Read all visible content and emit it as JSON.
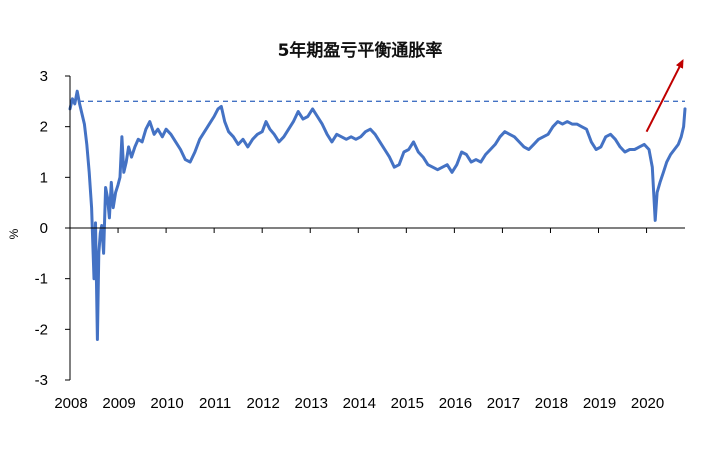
{
  "chart_data": {
    "type": "line",
    "title": "5年期盈亏平衡通胀率",
    "ylabel": "%",
    "xlabel": "",
    "ylim": [
      -3,
      3
    ],
    "xlim": [
      2008.0,
      2020.8
    ],
    "y_ticks": [
      "3",
      "2",
      "1",
      "0",
      "-1",
      "-2",
      "-3"
    ],
    "x_ticks": [
      "2008",
      "2009",
      "2010",
      "2011",
      "2012",
      "2013",
      "2014",
      "2015",
      "2016",
      "2017",
      "2018",
      "2019",
      "2020"
    ],
    "reference_line": {
      "y": 2.5,
      "style": "dashed",
      "color": "#4472c4"
    },
    "trend_arrow": {
      "from": [
        2020.0,
        1.9
      ],
      "to": [
        2020.75,
        3.3
      ],
      "color": "#c00000"
    },
    "colors": {
      "series": "#4472c4",
      "arrow": "#c00000",
      "axis": "#000000"
    },
    "series": [
      {
        "points": [
          [
            2008.0,
            2.35
          ],
          [
            2008.05,
            2.55
          ],
          [
            2008.1,
            2.45
          ],
          [
            2008.15,
            2.7
          ],
          [
            2008.2,
            2.45
          ],
          [
            2008.25,
            2.25
          ],
          [
            2008.3,
            2.05
          ],
          [
            2008.35,
            1.65
          ],
          [
            2008.4,
            1.1
          ],
          [
            2008.45,
            0.4
          ],
          [
            2008.5,
            -1.0
          ],
          [
            2008.53,
            0.1
          ],
          [
            2008.57,
            -2.2
          ],
          [
            2008.6,
            -0.5
          ],
          [
            2008.63,
            -0.1
          ],
          [
            2008.66,
            0.05
          ],
          [
            2008.7,
            -0.5
          ],
          [
            2008.74,
            0.8
          ],
          [
            2008.78,
            0.6
          ],
          [
            2008.82,
            0.2
          ],
          [
            2008.86,
            0.9
          ],
          [
            2008.9,
            0.4
          ],
          [
            2008.95,
            0.7
          ],
          [
            2009.0,
            0.85
          ],
          [
            2009.04,
            1.0
          ],
          [
            2009.08,
            1.8
          ],
          [
            2009.12,
            1.1
          ],
          [
            2009.17,
            1.3
          ],
          [
            2009.22,
            1.6
          ],
          [
            2009.28,
            1.4
          ],
          [
            2009.35,
            1.6
          ],
          [
            2009.42,
            1.75
          ],
          [
            2009.5,
            1.7
          ],
          [
            2009.58,
            1.95
          ],
          [
            2009.66,
            2.1
          ],
          [
            2009.75,
            1.85
          ],
          [
            2009.83,
            1.95
          ],
          [
            2009.92,
            1.8
          ],
          [
            2010.0,
            1.95
          ],
          [
            2010.1,
            1.85
          ],
          [
            2010.2,
            1.7
          ],
          [
            2010.3,
            1.55
          ],
          [
            2010.4,
            1.35
          ],
          [
            2010.5,
            1.3
          ],
          [
            2010.6,
            1.5
          ],
          [
            2010.7,
            1.75
          ],
          [
            2010.8,
            1.9
          ],
          [
            2010.9,
            2.05
          ],
          [
            2011.0,
            2.2
          ],
          [
            2011.08,
            2.35
          ],
          [
            2011.15,
            2.4
          ],
          [
            2011.22,
            2.1
          ],
          [
            2011.3,
            1.9
          ],
          [
            2011.4,
            1.8
          ],
          [
            2011.5,
            1.65
          ],
          [
            2011.6,
            1.75
          ],
          [
            2011.7,
            1.6
          ],
          [
            2011.8,
            1.75
          ],
          [
            2011.9,
            1.85
          ],
          [
            2012.0,
            1.9
          ],
          [
            2012.08,
            2.1
          ],
          [
            2012.16,
            1.95
          ],
          [
            2012.25,
            1.85
          ],
          [
            2012.35,
            1.7
          ],
          [
            2012.45,
            1.8
          ],
          [
            2012.55,
            1.95
          ],
          [
            2012.65,
            2.1
          ],
          [
            2012.75,
            2.3
          ],
          [
            2012.85,
            2.15
          ],
          [
            2012.95,
            2.2
          ],
          [
            2013.05,
            2.35
          ],
          [
            2013.15,
            2.2
          ],
          [
            2013.25,
            2.05
          ],
          [
            2013.35,
            1.85
          ],
          [
            2013.45,
            1.7
          ],
          [
            2013.55,
            1.85
          ],
          [
            2013.65,
            1.8
          ],
          [
            2013.75,
            1.75
          ],
          [
            2013.85,
            1.8
          ],
          [
            2013.95,
            1.75
          ],
          [
            2014.05,
            1.8
          ],
          [
            2014.15,
            1.9
          ],
          [
            2014.25,
            1.95
          ],
          [
            2014.35,
            1.85
          ],
          [
            2014.45,
            1.7
          ],
          [
            2014.55,
            1.55
          ],
          [
            2014.65,
            1.4
          ],
          [
            2014.75,
            1.2
          ],
          [
            2014.85,
            1.25
          ],
          [
            2014.95,
            1.5
          ],
          [
            2015.05,
            1.55
          ],
          [
            2015.15,
            1.7
          ],
          [
            2015.25,
            1.5
          ],
          [
            2015.35,
            1.4
          ],
          [
            2015.45,
            1.25
          ],
          [
            2015.55,
            1.2
          ],
          [
            2015.65,
            1.15
          ],
          [
            2015.75,
            1.2
          ],
          [
            2015.85,
            1.25
          ],
          [
            2015.95,
            1.1
          ],
          [
            2016.05,
            1.25
          ],
          [
            2016.15,
            1.5
          ],
          [
            2016.25,
            1.45
          ],
          [
            2016.35,
            1.3
          ],
          [
            2016.45,
            1.35
          ],
          [
            2016.55,
            1.3
          ],
          [
            2016.65,
            1.45
          ],
          [
            2016.75,
            1.55
          ],
          [
            2016.85,
            1.65
          ],
          [
            2016.95,
            1.8
          ],
          [
            2017.05,
            1.9
          ],
          [
            2017.15,
            1.85
          ],
          [
            2017.25,
            1.8
          ],
          [
            2017.35,
            1.7
          ],
          [
            2017.45,
            1.6
          ],
          [
            2017.55,
            1.55
          ],
          [
            2017.65,
            1.65
          ],
          [
            2017.75,
            1.75
          ],
          [
            2017.85,
            1.8
          ],
          [
            2017.95,
            1.85
          ],
          [
            2018.05,
            2.0
          ],
          [
            2018.15,
            2.1
          ],
          [
            2018.25,
            2.05
          ],
          [
            2018.35,
            2.1
          ],
          [
            2018.45,
            2.05
          ],
          [
            2018.55,
            2.05
          ],
          [
            2018.65,
            2.0
          ],
          [
            2018.75,
            1.95
          ],
          [
            2018.85,
            1.7
          ],
          [
            2018.95,
            1.55
          ],
          [
            2019.05,
            1.6
          ],
          [
            2019.15,
            1.8
          ],
          [
            2019.25,
            1.85
          ],
          [
            2019.35,
            1.75
          ],
          [
            2019.45,
            1.6
          ],
          [
            2019.55,
            1.5
          ],
          [
            2019.65,
            1.55
          ],
          [
            2019.75,
            1.55
          ],
          [
            2019.85,
            1.6
          ],
          [
            2019.95,
            1.65
          ],
          [
            2020.05,
            1.55
          ],
          [
            2020.12,
            1.2
          ],
          [
            2020.18,
            0.15
          ],
          [
            2020.22,
            0.7
          ],
          [
            2020.28,
            0.9
          ],
          [
            2020.35,
            1.1
          ],
          [
            2020.42,
            1.3
          ],
          [
            2020.5,
            1.45
          ],
          [
            2020.58,
            1.55
          ],
          [
            2020.66,
            1.65
          ],
          [
            2020.72,
            1.8
          ],
          [
            2020.77,
            2.0
          ],
          [
            2020.8,
            2.35
          ]
        ]
      }
    ]
  }
}
